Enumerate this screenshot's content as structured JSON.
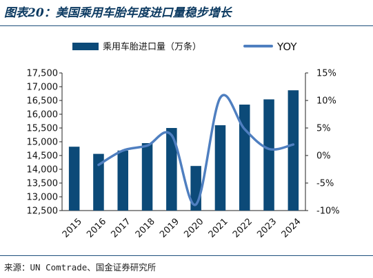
{
  "header": {
    "title": "图表20：美国乘用车胎年度进口量稳步增长"
  },
  "footer": {
    "source": "来源：UN Comtrade、国金证券研究所"
  },
  "chart_data": {
    "type": "bar",
    "title": "图表20：美国乘用车胎年度进口量稳步增长",
    "categories": [
      "2015",
      "2016",
      "2017",
      "2018",
      "2019",
      "2020",
      "2021",
      "2022",
      "2023",
      "2024"
    ],
    "series": [
      {
        "name": "乘用车胎进口量（万条）",
        "type": "bar",
        "axis": "left",
        "color": "#0c4a78",
        "values": [
          14820,
          14560,
          14680,
          14950,
          15500,
          14120,
          15600,
          16350,
          16540,
          16870
        ]
      },
      {
        "name": "YOY",
        "type": "line",
        "axis": "right",
        "color": "#4f7fc0",
        "values": [
          null,
          -1.7,
          0.9,
          1.8,
          3.7,
          -8.9,
          10.5,
          4.8,
          1.2,
          2.0
        ]
      }
    ],
    "y_left": {
      "ylim": [
        12500,
        17500
      ],
      "ticks": [
        "12,500",
        "13,000",
        "13,500",
        "14,000",
        "14,500",
        "15,000",
        "15,500",
        "16,000",
        "16,500",
        "17,000",
        "17,500"
      ]
    },
    "y_right": {
      "ylim": [
        -10,
        15
      ],
      "ticks": [
        "-10%",
        "-5%",
        "0%",
        "5%",
        "10%",
        "15%"
      ]
    },
    "legend_position": "top",
    "grid": false
  }
}
